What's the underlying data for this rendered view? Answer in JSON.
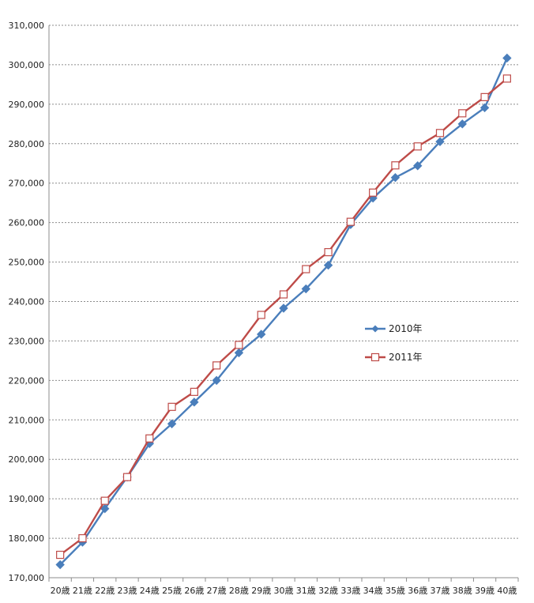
{
  "chart_data": {
    "type": "line",
    "categories": [
      "20歳",
      "21歳",
      "22歳",
      "23歳",
      "24歳",
      "25歳",
      "26歳",
      "27歳",
      "28歳",
      "29歳",
      "30歳",
      "31歳",
      "32歳",
      "33歳",
      "34歳",
      "35歳",
      "36歳",
      "37歳",
      "38歳",
      "39歳",
      "40歳"
    ],
    "series": [
      {
        "name": "2010年",
        "color": "#4a7ebb",
        "marker": "diamond",
        "values": [
          173300,
          179000,
          187500,
          195500,
          204000,
          209000,
          214500,
          220000,
          227000,
          231700,
          238300,
          243200,
          249200,
          259500,
          266200,
          271400,
          274400,
          280500,
          285000,
          289100,
          301700
        ]
      },
      {
        "name": "2011年",
        "color": "#be4b48",
        "marker": "square-open",
        "values": [
          175800,
          180000,
          189500,
          195500,
          205300,
          213300,
          217100,
          223800,
          229000,
          236600,
          241800,
          248200,
          252500,
          260200,
          267600,
          274500,
          279300,
          282700,
          287700,
          291800,
          296500
        ]
      }
    ],
    "ylim": [
      170000,
      310000
    ],
    "ytick_step": 10000,
    "grid": "horizontal",
    "legend_position": "right"
  }
}
